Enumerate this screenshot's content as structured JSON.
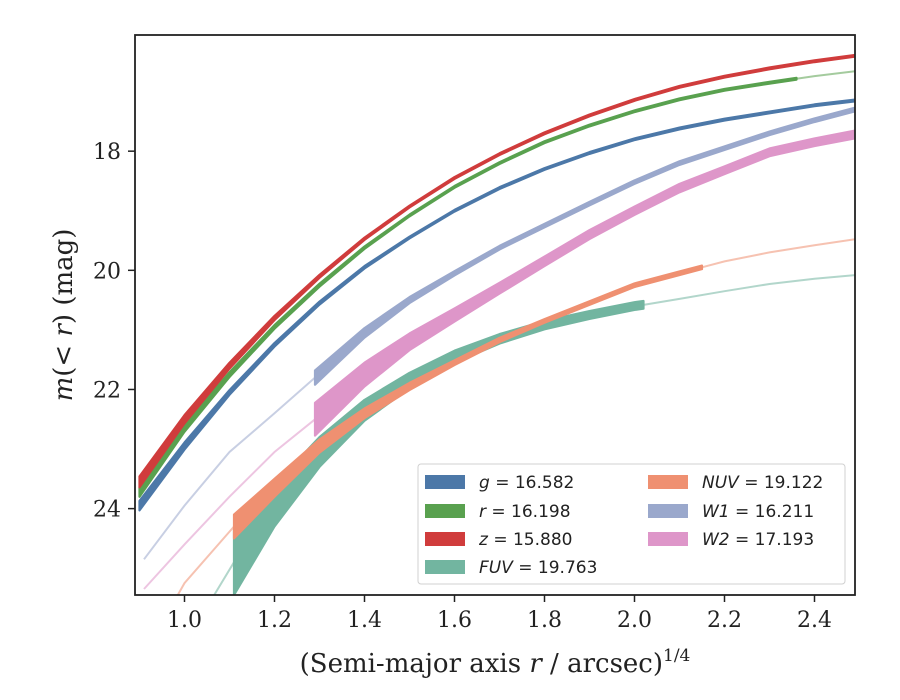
{
  "chart_data": {
    "type": "line",
    "xlabel_prefix": "(Semi-major axis ",
    "xlabel_var": "r",
    "xlabel_mid": " / arcsec)",
    "xlabel_exp": "1/4",
    "ylabel_m": "m",
    "ylabel_mid": "(< ",
    "ylabel_r": "r",
    "ylabel_end": ") (mag)",
    "xlim": [
      0.89,
      2.49
    ],
    "ylim": [
      25.45,
      16.05
    ],
    "y_inverted": true,
    "xticks": [
      1.0,
      1.2,
      1.4,
      1.6,
      1.8,
      2.0,
      2.2,
      2.4
    ],
    "xtick_labels": [
      "1.0",
      "1.2",
      "1.4",
      "1.6",
      "1.8",
      "2.0",
      "2.2",
      "2.4"
    ],
    "yticks": [
      18,
      20,
      22,
      24
    ],
    "ytick_labels": [
      "18",
      "20",
      "22",
      "24"
    ],
    "grid": false,
    "legend_position": "lower-right",
    "legend_columns": 2,
    "series": [
      {
        "key": "g",
        "color": "#4c78a8",
        "label_var": "g",
        "label_eq": " = 16.582",
        "x": [
          0.9,
          1.0,
          1.1,
          1.2,
          1.3,
          1.4,
          1.5,
          1.6,
          1.7,
          1.8,
          1.9,
          2.0,
          2.1,
          2.2,
          2.3,
          2.4,
          2.49
        ],
        "y": [
          23.95,
          22.95,
          22.05,
          21.25,
          20.55,
          19.95,
          19.45,
          19.0,
          18.62,
          18.3,
          18.03,
          17.8,
          17.62,
          17.47,
          17.35,
          17.23,
          17.15
        ],
        "width": [
          0.16,
          0.12,
          0.08,
          0.06,
          0.05,
          0.04,
          0.03,
          0.03,
          0.03,
          0.03,
          0.03,
          0.03,
          0.03,
          0.03,
          0.03,
          0.03,
          0.03
        ],
        "solid_range": [
          0.9,
          2.49
        ]
      },
      {
        "key": "r",
        "color": "#59a14f",
        "label_var": "r",
        "label_eq": " = 16.198",
        "x": [
          0.9,
          1.0,
          1.1,
          1.2,
          1.3,
          1.4,
          1.5,
          1.6,
          1.7,
          1.8,
          1.9,
          2.0,
          2.1,
          2.2,
          2.3,
          2.4,
          2.49
        ],
        "y": [
          23.72,
          22.65,
          21.75,
          20.95,
          20.25,
          19.62,
          19.08,
          18.6,
          18.2,
          17.85,
          17.57,
          17.33,
          17.13,
          16.97,
          16.85,
          16.74,
          16.66
        ],
        "width": [
          0.16,
          0.12,
          0.08,
          0.06,
          0.05,
          0.04,
          0.03,
          0.03,
          0.03,
          0.03,
          0.03,
          0.03,
          0.03,
          0.03,
          0.03,
          0.03,
          0.03
        ],
        "solid_range": [
          0.9,
          2.36
        ]
      },
      {
        "key": "z",
        "color": "#d03c3c",
        "label_var": "z",
        "label_eq": " = 15.880",
        "x": [
          0.9,
          1.0,
          1.1,
          1.2,
          1.3,
          1.4,
          1.5,
          1.6,
          1.7,
          1.8,
          1.9,
          2.0,
          2.1,
          2.2,
          2.3,
          2.4,
          2.49
        ],
        "y": [
          23.55,
          22.5,
          21.6,
          20.8,
          20.1,
          19.47,
          18.93,
          18.45,
          18.05,
          17.7,
          17.4,
          17.14,
          16.92,
          16.75,
          16.61,
          16.49,
          16.4
        ],
        "width": [
          0.18,
          0.14,
          0.1,
          0.07,
          0.05,
          0.04,
          0.03,
          0.03,
          0.03,
          0.03,
          0.03,
          0.03,
          0.03,
          0.03,
          0.03,
          0.03,
          0.03
        ],
        "solid_range": [
          0.9,
          2.49
        ]
      },
      {
        "key": "FUV",
        "color": "#72b5a0",
        "label_var": "FUV",
        "label_eq": " = 19.763",
        "x": [
          1.066,
          1.11,
          1.2,
          1.3,
          1.4,
          1.5,
          1.6,
          1.7,
          1.8,
          1.9,
          2.0,
          2.02,
          2.1,
          2.2,
          2.3,
          2.4,
          2.49
        ],
        "y": [
          25.45,
          24.9,
          23.95,
          23.05,
          22.35,
          21.85,
          21.45,
          21.15,
          20.92,
          20.75,
          20.6,
          20.58,
          20.48,
          20.35,
          20.23,
          20.14,
          20.08
        ],
        "width": [
          0.0,
          1.1,
          0.7,
          0.5,
          0.35,
          0.26,
          0.2,
          0.16,
          0.14,
          0.13,
          0.13,
          0.13,
          0.04,
          0.04,
          0.04,
          0.04,
          0.04
        ],
        "solid_range": [
          1.11,
          2.02
        ]
      },
      {
        "key": "NUV",
        "color": "#ef9071",
        "label_var": "NUV",
        "label_eq": " = 19.122",
        "x": [
          0.985,
          1.0,
          1.11,
          1.2,
          1.3,
          1.4,
          1.5,
          1.6,
          1.7,
          1.8,
          1.9,
          2.0,
          2.1,
          2.15,
          2.2,
          2.3,
          2.4,
          2.49
        ],
        "y": [
          25.45,
          25.25,
          24.3,
          23.65,
          22.95,
          22.4,
          21.95,
          21.55,
          21.17,
          20.85,
          20.55,
          20.25,
          20.05,
          19.95,
          19.85,
          19.7,
          19.58,
          19.48
        ],
        "width": [
          0.04,
          0.04,
          0.4,
          0.3,
          0.22,
          0.16,
          0.12,
          0.08,
          0.07,
          0.06,
          0.06,
          0.06,
          0.06,
          0.06,
          0.04,
          0.04,
          0.04,
          0.04
        ],
        "solid_range": [
          1.11,
          2.15
        ]
      },
      {
        "key": "W1",
        "color": "#9aa8cc",
        "label_var": "W1",
        "label_eq": " = 16.211",
        "x": [
          0.91,
          1.0,
          1.1,
          1.2,
          1.29,
          1.4,
          1.5,
          1.6,
          1.7,
          1.8,
          1.9,
          2.0,
          2.1,
          2.2,
          2.3,
          2.4,
          2.49
        ],
        "y": [
          24.85,
          23.95,
          23.05,
          22.4,
          21.8,
          21.05,
          20.5,
          20.05,
          19.62,
          19.25,
          18.88,
          18.52,
          18.2,
          17.95,
          17.7,
          17.48,
          17.3
        ],
        "width": [
          0.04,
          0.04,
          0.04,
          0.04,
          0.24,
          0.16,
          0.1,
          0.07,
          0.06,
          0.06,
          0.06,
          0.06,
          0.06,
          0.06,
          0.06,
          0.06,
          0.06
        ],
        "solid_range": [
          1.29,
          2.49
        ]
      },
      {
        "key": "W2",
        "color": "#de96c9",
        "label_var": "W2",
        "label_eq": " = 17.193",
        "x": [
          0.91,
          1.0,
          1.1,
          1.2,
          1.29,
          1.4,
          1.5,
          1.6,
          1.7,
          1.8,
          1.9,
          2.0,
          2.1,
          2.2,
          2.3,
          2.4,
          2.49
        ],
        "y": [
          25.35,
          24.6,
          23.8,
          23.05,
          22.5,
          21.75,
          21.2,
          20.75,
          20.3,
          19.85,
          19.4,
          19.0,
          18.62,
          18.32,
          18.02,
          17.85,
          17.72
        ],
        "width": [
          0.04,
          0.04,
          0.04,
          0.04,
          0.55,
          0.4,
          0.28,
          0.22,
          0.18,
          0.16,
          0.15,
          0.14,
          0.14,
          0.13,
          0.13,
          0.13,
          0.13
        ],
        "solid_range": [
          1.29,
          2.49
        ]
      }
    ],
    "legend_order": [
      [
        "g",
        "r",
        "z",
        "FUV"
      ],
      [
        "NUV",
        "W1",
        "W2"
      ]
    ]
  }
}
